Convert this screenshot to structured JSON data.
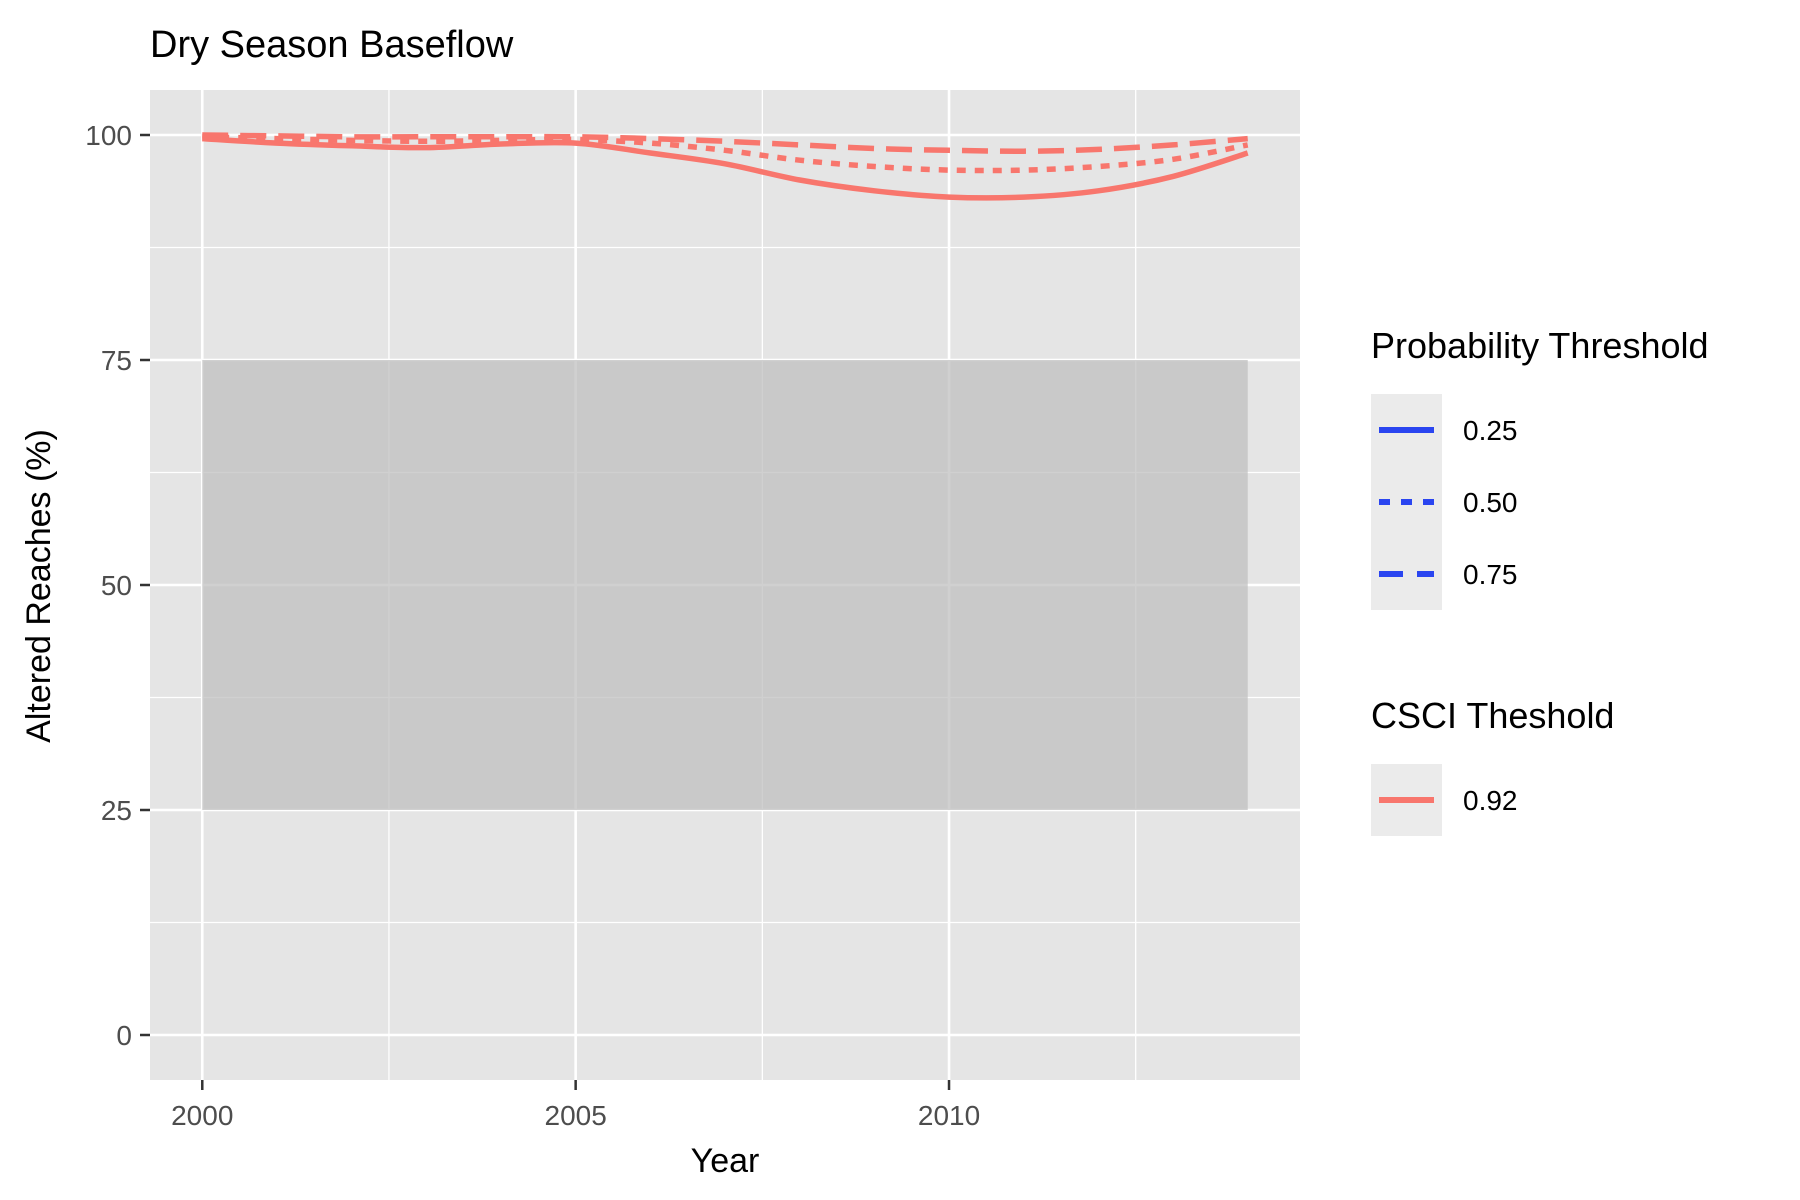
{
  "chart_data": {
    "type": "line",
    "title": "Dry Season Baseflow",
    "xlabel": "Year",
    "ylabel": "Altered Reaches (%)",
    "xlim": [
      1999.3,
      2014.7
    ],
    "ylim": [
      -5,
      105
    ],
    "x_ticks": [
      2000,
      2005,
      2010
    ],
    "y_ticks": [
      0,
      25,
      50,
      75,
      100
    ],
    "grid": true,
    "background_color": "#E5E5E5",
    "grid_color": "#FFFFFF",
    "band": {
      "x": [
        2000,
        2014
      ],
      "y": [
        25,
        75
      ],
      "color": "#BEBEBE"
    },
    "x": [
      2000,
      2001,
      2002,
      2003,
      2004,
      2005,
      2006,
      2007,
      2008,
      2009,
      2010,
      2011,
      2012,
      2013,
      2014
    ],
    "series": [
      {
        "name": "0.25",
        "linetype": "solid",
        "color": "#F8766D",
        "values": [
          99.6,
          99.1,
          98.8,
          98.6,
          99.0,
          99.1,
          98.0,
          96.8,
          95.0,
          93.8,
          93.1,
          93.1,
          93.8,
          95.4,
          98.0
        ]
      },
      {
        "name": "0.50",
        "linetype": "dotted",
        "color": "#F8766D",
        "values": [
          99.8,
          99.6,
          99.4,
          99.3,
          99.4,
          99.5,
          99.1,
          98.3,
          97.2,
          96.5,
          96.1,
          96.1,
          96.5,
          97.3,
          98.9
        ]
      },
      {
        "name": "0.75",
        "linetype": "dashed",
        "color": "#F8766D",
        "values": [
          100.0,
          99.9,
          99.8,
          99.8,
          99.8,
          99.8,
          99.6,
          99.3,
          98.9,
          98.5,
          98.3,
          98.2,
          98.4,
          98.9,
          99.6
        ]
      }
    ],
    "legends": [
      {
        "title": "Probability Threshold",
        "color": "#2A45F0",
        "entries": [
          {
            "label": "0.25",
            "linetype": "solid"
          },
          {
            "label": "0.50",
            "linetype": "dotted"
          },
          {
            "label": "0.75",
            "linetype": "dashed"
          }
        ]
      },
      {
        "title": "CSCI Theshold",
        "color": "#F8766D",
        "entries": [
          {
            "label": "0.92",
            "linetype": "solid"
          }
        ]
      }
    ],
    "legend_position": "right"
  }
}
